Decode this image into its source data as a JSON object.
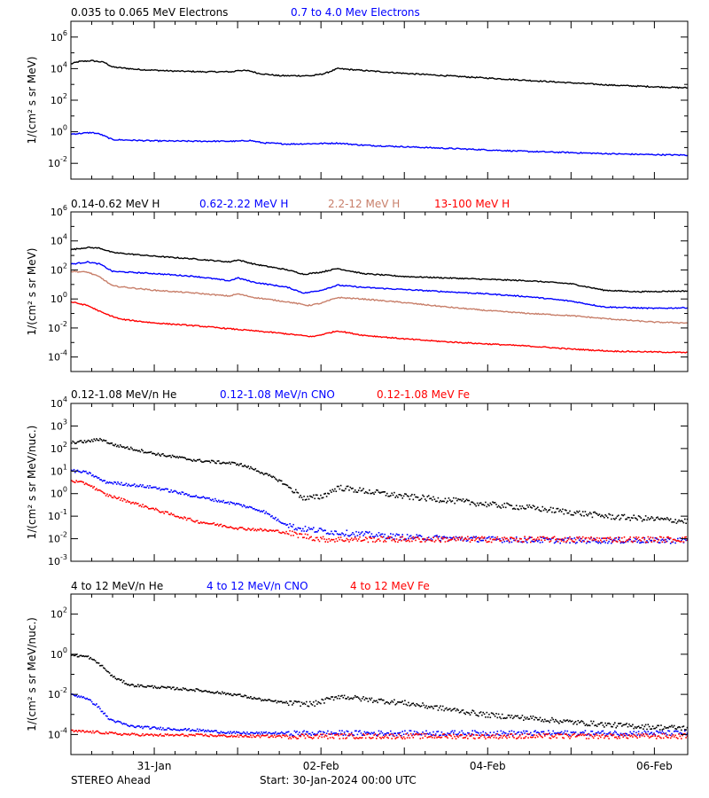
{
  "chart_data": [
    {
      "type": "scatter",
      "title_items": [
        {
          "text": "0.035 to 0.065 MeV Electrons",
          "color": "#000000"
        },
        {
          "text": "0.7 to 4.0 Mev Electrons",
          "color": "#0000ff"
        }
      ],
      "ylabel": "1/(cm² s sr MeV)",
      "y_log_range": [
        -3,
        7
      ],
      "ytick_exponents": [
        -2,
        0,
        2,
        4,
        6
      ],
      "series": [
        {
          "name": "0.035 to 0.065 MeV Electrons",
          "color": "#000000",
          "style": "line",
          "points": [
            [
              0,
              4.3
            ],
            [
              0.1,
              4.45
            ],
            [
              0.25,
              4.5
            ],
            [
              0.4,
              4.4
            ],
            [
              0.5,
              4.1
            ],
            [
              0.8,
              3.95
            ],
            [
              1.2,
              3.85
            ],
            [
              1.6,
              3.8
            ],
            [
              1.95,
              3.8
            ],
            [
              2.0,
              3.9
            ],
            [
              2.15,
              3.85
            ],
            [
              2.25,
              3.7
            ],
            [
              2.5,
              3.55
            ],
            [
              2.9,
              3.55
            ],
            [
              3.05,
              3.7
            ],
            [
              3.2,
              4.0
            ],
            [
              3.6,
              3.85
            ],
            [
              4.0,
              3.7
            ],
            [
              4.5,
              3.55
            ],
            [
              5.0,
              3.4
            ],
            [
              5.5,
              3.25
            ],
            [
              6.0,
              3.1
            ],
            [
              6.5,
              2.95
            ],
            [
              7.0,
              2.85
            ],
            [
              7.4,
              2.78
            ]
          ]
        },
        {
          "name": "0.7 to 4.0 Mev Electrons",
          "color": "#0000ff",
          "style": "line",
          "points": [
            [
              0,
              -0.15
            ],
            [
              0.25,
              -0.05
            ],
            [
              0.35,
              -0.15
            ],
            [
              0.5,
              -0.5
            ],
            [
              1.0,
              -0.58
            ],
            [
              1.5,
              -0.6
            ],
            [
              2.0,
              -0.6
            ],
            [
              2.15,
              -0.55
            ],
            [
              2.3,
              -0.7
            ],
            [
              2.6,
              -0.78
            ],
            [
              2.95,
              -0.75
            ],
            [
              3.2,
              -0.72
            ],
            [
              3.5,
              -0.85
            ],
            [
              4.0,
              -0.95
            ],
            [
              4.5,
              -1.05
            ],
            [
              5.0,
              -1.15
            ],
            [
              5.5,
              -1.25
            ],
            [
              6.0,
              -1.32
            ],
            [
              6.5,
              -1.4
            ],
            [
              7.0,
              -1.45
            ],
            [
              7.4,
              -1.48
            ]
          ]
        }
      ]
    },
    {
      "type": "scatter",
      "title_items": [
        {
          "text": "0.14-0.62 MeV H",
          "color": "#000000"
        },
        {
          "text": "0.62-2.22 MeV H",
          "color": "#0000ff"
        },
        {
          "text": "2.2-12 MeV H",
          "color": "#c87f6a"
        },
        {
          "text": "13-100 MeV H",
          "color": "#ff0000"
        }
      ],
      "ylabel": "1/(cm² s sr MeV)",
      "y_log_range": [
        -5,
        6
      ],
      "ytick_exponents": [
        -4,
        -2,
        0,
        2,
        4,
        6
      ],
      "series": [
        {
          "name": "0.14-0.62 MeV H",
          "color": "#000000",
          "style": "line",
          "points": [
            [
              0,
              3.4
            ],
            [
              0.2,
              3.55
            ],
            [
              0.35,
              3.5
            ],
            [
              0.5,
              3.2
            ],
            [
              1.0,
              2.95
            ],
            [
              1.5,
              2.75
            ],
            [
              1.9,
              2.55
            ],
            [
              2.0,
              2.7
            ],
            [
              2.2,
              2.4
            ],
            [
              2.6,
              2.0
            ],
            [
              2.8,
              1.7
            ],
            [
              3.0,
              1.85
            ],
            [
              3.2,
              2.1
            ],
            [
              3.5,
              1.75
            ],
            [
              4.0,
              1.55
            ],
            [
              4.5,
              1.45
            ],
            [
              5.0,
              1.35
            ],
            [
              5.5,
              1.25
            ],
            [
              6.0,
              1.05
            ],
            [
              6.4,
              0.6
            ],
            [
              6.8,
              0.5
            ],
            [
              7.4,
              0.55
            ]
          ]
        },
        {
          "name": "0.62-2.22 MeV H",
          "color": "#0000ff",
          "style": "line",
          "points": [
            [
              0,
              2.4
            ],
            [
              0.2,
              2.55
            ],
            [
              0.35,
              2.4
            ],
            [
              0.5,
              1.9
            ],
            [
              1.0,
              1.75
            ],
            [
              1.5,
              1.55
            ],
            [
              1.9,
              1.25
            ],
            [
              2.0,
              1.45
            ],
            [
              2.2,
              1.15
            ],
            [
              2.6,
              0.8
            ],
            [
              2.8,
              0.4
            ],
            [
              3.0,
              0.6
            ],
            [
              3.2,
              0.95
            ],
            [
              3.5,
              0.8
            ],
            [
              4.0,
              0.65
            ],
            [
              4.5,
              0.5
            ],
            [
              5.0,
              0.35
            ],
            [
              5.5,
              0.15
            ],
            [
              6.0,
              -0.15
            ],
            [
              6.4,
              -0.55
            ],
            [
              7.0,
              -0.65
            ],
            [
              7.4,
              -0.6
            ]
          ]
        },
        {
          "name": "2.2-12 MeV H",
          "color": "#c87f6a",
          "style": "line",
          "points": [
            [
              0,
              1.9
            ],
            [
              0.2,
              1.85
            ],
            [
              0.35,
              1.5
            ],
            [
              0.5,
              0.9
            ],
            [
              1.0,
              0.6
            ],
            [
              1.5,
              0.4
            ],
            [
              1.9,
              0.2
            ],
            [
              2.0,
              0.35
            ],
            [
              2.2,
              0.1
            ],
            [
              2.6,
              -0.2
            ],
            [
              2.85,
              -0.45
            ],
            [
              3.0,
              -0.3
            ],
            [
              3.2,
              0.1
            ],
            [
              3.5,
              0.0
            ],
            [
              4.0,
              -0.25
            ],
            [
              4.5,
              -0.55
            ],
            [
              5.0,
              -0.8
            ],
            [
              5.5,
              -1.0
            ],
            [
              6.0,
              -1.15
            ],
            [
              6.4,
              -1.35
            ],
            [
              7.0,
              -1.6
            ],
            [
              7.4,
              -1.65
            ]
          ]
        },
        {
          "name": "13-100 MeV H",
          "color": "#ff0000",
          "style": "line",
          "points": [
            [
              0,
              -0.2
            ],
            [
              0.2,
              -0.45
            ],
            [
              0.4,
              -1.0
            ],
            [
              0.6,
              -1.4
            ],
            [
              1.0,
              -1.65
            ],
            [
              1.5,
              -1.85
            ],
            [
              2.0,
              -2.1
            ],
            [
              2.5,
              -2.35
            ],
            [
              2.9,
              -2.6
            ],
            [
              3.2,
              -2.2
            ],
            [
              3.5,
              -2.5
            ],
            [
              4.0,
              -2.75
            ],
            [
              4.5,
              -2.95
            ],
            [
              5.0,
              -3.1
            ],
            [
              5.5,
              -3.25
            ],
            [
              6.0,
              -3.45
            ],
            [
              6.5,
              -3.6
            ],
            [
              7.0,
              -3.65
            ],
            [
              7.4,
              -3.7
            ]
          ]
        }
      ]
    },
    {
      "type": "scatter",
      "title_items": [
        {
          "text": "0.12-1.08 MeV/n He",
          "color": "#000000"
        },
        {
          "text": "0.12-1.08 MeV/n CNO",
          "color": "#0000ff"
        },
        {
          "text": "0.12-1.08 MeV Fe",
          "color": "#ff0000"
        }
      ],
      "ylabel": "1/(cm² s sr MeV/nuc.)",
      "y_log_range": [
        -3,
        4
      ],
      "ytick_exponents": [
        -3,
        -2,
        -1,
        0,
        1,
        2,
        3,
        4
      ],
      "series": [
        {
          "name": "0.12-1.08 MeV/n He",
          "color": "#000000",
          "style": "dots",
          "points": [
            [
              0,
              2.3
            ],
            [
              0.2,
              2.35
            ],
            [
              0.35,
              2.45
            ],
            [
              0.5,
              2.2
            ],
            [
              1.0,
              1.8
            ],
            [
              1.5,
              1.5
            ],
            [
              2.0,
              1.35
            ],
            [
              2.2,
              1.1
            ],
            [
              2.5,
              0.6
            ],
            [
              2.8,
              -0.2
            ],
            [
              3.0,
              -0.1
            ],
            [
              3.2,
              0.3
            ],
            [
              3.5,
              0.15
            ],
            [
              4.0,
              -0.1
            ],
            [
              4.5,
              -0.25
            ],
            [
              5.0,
              -0.45
            ],
            [
              5.5,
              -0.6
            ],
            [
              6.0,
              -0.8
            ],
            [
              6.5,
              -1.0
            ],
            [
              7.0,
              -1.1
            ],
            [
              7.4,
              -1.2
            ]
          ]
        },
        {
          "name": "0.12-1.08 MeV/n CNO",
          "color": "#0000ff",
          "style": "dots",
          "points": [
            [
              0,
              1.05
            ],
            [
              0.2,
              0.95
            ],
            [
              0.4,
              0.55
            ],
            [
              1.0,
              0.3
            ],
            [
              1.5,
              -0.1
            ],
            [
              2.0,
              -0.45
            ],
            [
              2.3,
              -0.75
            ],
            [
              2.5,
              -1.2
            ],
            [
              2.7,
              -1.5
            ],
            [
              3.2,
              -1.7
            ],
            [
              4.0,
              -1.9
            ],
            [
              5.0,
              -2.0
            ],
            [
              6.0,
              -2.05
            ],
            [
              7.4,
              -2.05
            ]
          ]
        },
        {
          "name": "0.12-1.08 MeV Fe",
          "color": "#ff0000",
          "style": "dots",
          "points": [
            [
              0,
              0.6
            ],
            [
              0.2,
              0.45
            ],
            [
              0.4,
              0.0
            ],
            [
              0.8,
              -0.45
            ],
            [
              1.2,
              -0.9
            ],
            [
              1.5,
              -1.2
            ],
            [
              2.0,
              -1.5
            ],
            [
              2.5,
              -1.65
            ],
            [
              3.0,
              -2.0
            ],
            [
              4.0,
              -2.0
            ],
            [
              5.0,
              -2.0
            ],
            [
              6.0,
              -2.0
            ],
            [
              7.4,
              -2.0
            ]
          ]
        }
      ]
    },
    {
      "type": "scatter",
      "title_items": [
        {
          "text": "4 to 12 MeV/n He",
          "color": "#000000"
        },
        {
          "text": "4 to 12 MeV/n CNO",
          "color": "#0000ff"
        },
        {
          "text": "4 to 12 MeV Fe",
          "color": "#ff0000"
        }
      ],
      "ylabel": "1/(cm² s sr MeV/nuc.)",
      "y_log_range": [
        -5,
        3
      ],
      "ytick_exponents": [
        -4,
        -2,
        0,
        2
      ],
      "series": [
        {
          "name": "4 to 12 MeV/n He",
          "color": "#000000",
          "style": "dots",
          "points": [
            [
              0,
              0.0
            ],
            [
              0.2,
              -0.1
            ],
            [
              0.35,
              -0.5
            ],
            [
              0.5,
              -1.1
            ],
            [
              0.7,
              -1.5
            ],
            [
              1.0,
              -1.6
            ],
            [
              1.5,
              -1.75
            ],
            [
              2.0,
              -2.0
            ],
            [
              2.3,
              -2.25
            ],
            [
              2.6,
              -2.4
            ],
            [
              2.9,
              -2.45
            ],
            [
              3.1,
              -2.2
            ],
            [
              3.2,
              -2.05
            ],
            [
              3.5,
              -2.2
            ],
            [
              4.0,
              -2.4
            ],
            [
              4.5,
              -2.7
            ],
            [
              5.0,
              -3.0
            ],
            [
              5.5,
              -3.15
            ],
            [
              6.0,
              -3.35
            ],
            [
              6.5,
              -3.5
            ],
            [
              7.0,
              -3.6
            ],
            [
              7.4,
              -3.65
            ]
          ]
        },
        {
          "name": "4 to 12 MeV/n CNO",
          "color": "#0000ff",
          "style": "dots",
          "points": [
            [
              0,
              -2.0
            ],
            [
              0.15,
              -2.1
            ],
            [
              0.3,
              -2.5
            ],
            [
              0.45,
              -3.2
            ],
            [
              0.7,
              -3.55
            ],
            [
              1.0,
              -3.65
            ],
            [
              1.5,
              -3.75
            ],
            [
              2.0,
              -3.9
            ],
            [
              2.5,
              -3.9
            ],
            [
              3.0,
              -3.9
            ],
            [
              4.0,
              -3.9
            ],
            [
              5.0,
              -3.9
            ],
            [
              6.0,
              -3.9
            ],
            [
              7.4,
              -3.9
            ]
          ]
        },
        {
          "name": "4 to 12 MeV Fe",
          "color": "#ff0000",
          "style": "dots",
          "points": [
            [
              0,
              -3.8
            ],
            [
              0.3,
              -3.85
            ],
            [
              0.6,
              -3.95
            ],
            [
              1.0,
              -4.0
            ],
            [
              1.5,
              -4.0
            ],
            [
              2.0,
              -4.05
            ],
            [
              3.0,
              -4.05
            ],
            [
              4.0,
              -4.05
            ],
            [
              5.0,
              -4.05
            ],
            [
              6.0,
              -4.05
            ],
            [
              7.4,
              -4.05
            ]
          ]
        }
      ]
    }
  ],
  "x_axis": {
    "range_days": [
      0,
      7.4
    ],
    "tick_labels": [
      {
        "label": "31-Jan",
        "day": 1
      },
      {
        "label": "02-Feb",
        "day": 3
      },
      {
        "label": "04-Feb",
        "day": 5
      },
      {
        "label": "06-Feb",
        "day": 7
      }
    ]
  },
  "footer": {
    "left": "STEREO Ahead",
    "center": "Start: 30-Jan-2024 00:00 UTC"
  }
}
